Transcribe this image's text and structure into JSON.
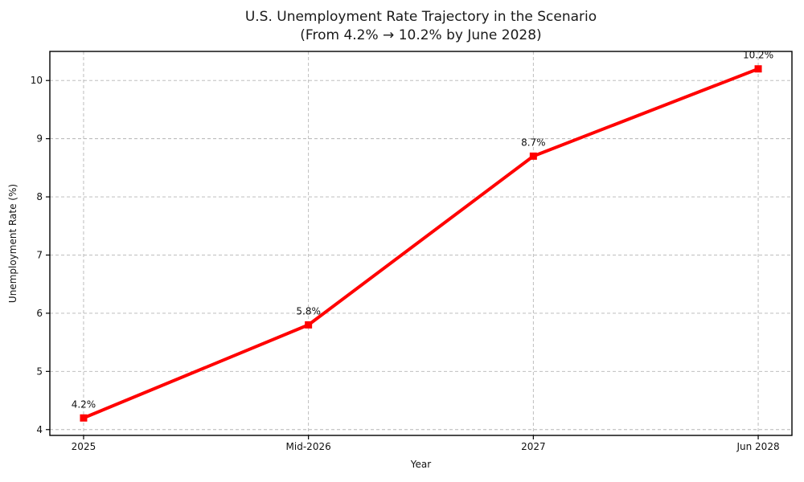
{
  "figure": {
    "title": "U.S. Unemployment Rate Trajectory in the Scenario",
    "subtitle": "(From 4.2% → 10.2% by June 2028)"
  },
  "chart_data": {
    "type": "line",
    "title": "U.S. Unemployment Rate Trajectory in the Scenario",
    "subtitle": "(From 4.2% → 10.2% by June 2028)",
    "categories": [
      "2025",
      "Mid-2026",
      "2027",
      "Jun 2028"
    ],
    "series": [
      {
        "name": "Unemployment Rate",
        "values": [
          4.2,
          5.8,
          8.7,
          10.2
        ],
        "color": "#ff0000",
        "marker": "square",
        "line_width": 4
      }
    ],
    "point_labels": [
      "4.2%",
      "5.8%",
      "8.7%",
      "10.2%"
    ],
    "xlabel": "Year",
    "ylabel": "Unemployment Rate (%)",
    "yticks": [
      4,
      5,
      6,
      7,
      8,
      9,
      10
    ],
    "ylim": [
      3.9,
      10.5
    ],
    "grid": true,
    "grid_color": "#b5b5b5",
    "grid_style": "dashed",
    "axis_color": "#000000",
    "text_color": "#111111",
    "legend": "none"
  }
}
